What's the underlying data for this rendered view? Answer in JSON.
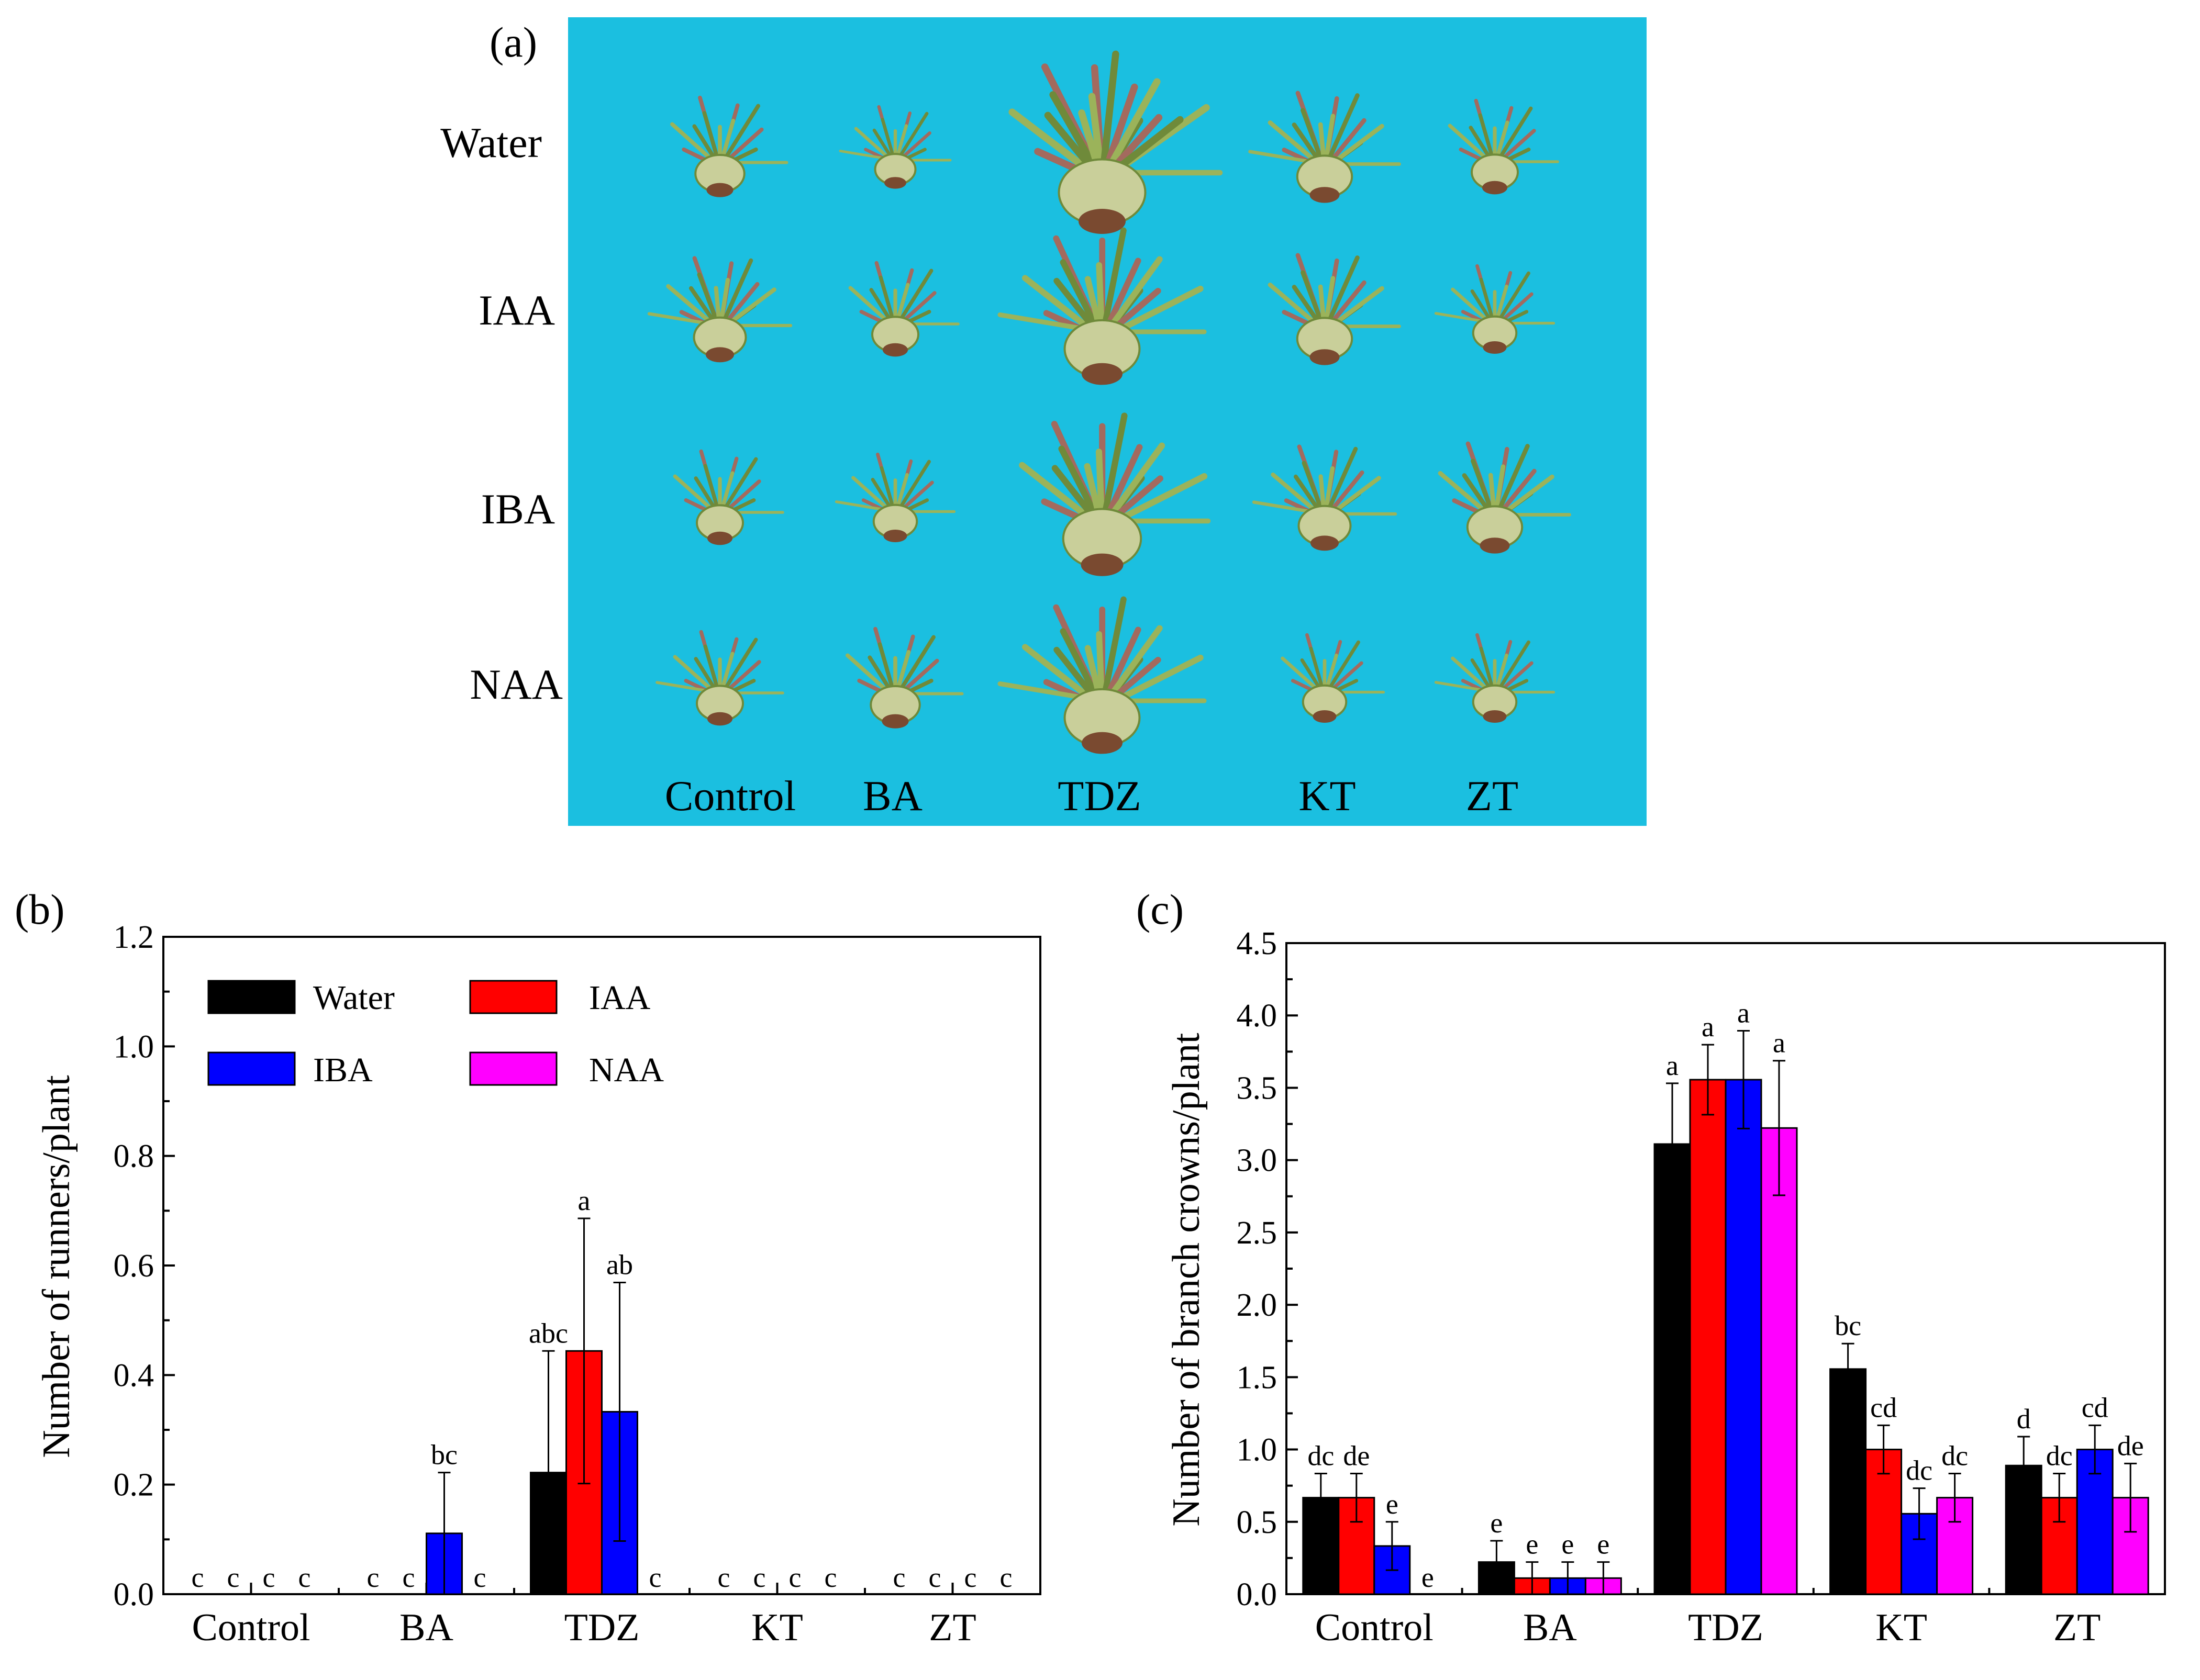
{
  "panel_a": {
    "label": "(a)",
    "row_labels": [
      "Water",
      "IAA",
      "IBA",
      "NAA"
    ],
    "col_labels": [
      "Control",
      "BA",
      "TDZ",
      "KT",
      "ZT"
    ],
    "background_color": "#1bbfe0",
    "specimen_colors": {
      "leaf": "#9bb35a",
      "leaf_dark": "#6f8a3a",
      "stem": "#a36a5e",
      "crown": "#c9cf9a",
      "root": "#7a4a30"
    },
    "specimen_scale": [
      [
        0.85,
        0.7,
        1.5,
        0.95,
        0.8
      ],
      [
        0.9,
        0.8,
        1.3,
        0.95,
        0.75
      ],
      [
        0.8,
        0.75,
        1.35,
        0.9,
        0.95
      ],
      [
        0.8,
        0.85,
        1.3,
        0.75,
        0.75
      ]
    ]
  },
  "legend": {
    "items": [
      {
        "name": "Water",
        "color": "#000000"
      },
      {
        "name": "IAA",
        "color": "#ff0000"
      },
      {
        "name": "IBA",
        "color": "#0000ff"
      },
      {
        "name": "NAA",
        "color": "#ff00ff"
      }
    ]
  },
  "chart_data": [
    {
      "id": "b",
      "panel_label": "(b)",
      "type": "bar",
      "ylabel": "Number of runners/plant",
      "ylim": [
        0,
        1.2
      ],
      "yticks": [
        "0.0",
        "0.2",
        "0.4",
        "0.6",
        "0.8",
        "1.0",
        "1.2"
      ],
      "categories": [
        "Control",
        "BA",
        "TDZ",
        "KT",
        "ZT"
      ],
      "series": [
        {
          "name": "Water",
          "color": "#000000",
          "values": [
            0,
            0,
            0.222,
            0,
            0
          ],
          "errors": [
            0,
            0,
            0.222,
            0,
            0
          ],
          "labels": [
            "c",
            "c",
            "abc",
            "c",
            "c"
          ]
        },
        {
          "name": "IAA",
          "color": "#ff0000",
          "values": [
            0,
            0,
            0.444,
            0,
            0
          ],
          "errors": [
            0,
            0,
            0.242,
            0,
            0
          ],
          "labels": [
            "c",
            "c",
            "a",
            "c",
            "c"
          ]
        },
        {
          "name": "IBA",
          "color": "#0000ff",
          "values": [
            0,
            0.111,
            0.333,
            0,
            0
          ],
          "errors": [
            0,
            0.111,
            0.236,
            0,
            0
          ],
          "labels": [
            "c",
            "bc",
            "ab",
            "c",
            "c"
          ]
        },
        {
          "name": "NAA",
          "color": "#ff00ff",
          "values": [
            0,
            0,
            0,
            0,
            0
          ],
          "errors": [
            0,
            0,
            0,
            0,
            0
          ],
          "labels": [
            "c",
            "c",
            "c",
            "c",
            "c"
          ]
        }
      ]
    },
    {
      "id": "c",
      "panel_label": "(c)",
      "type": "bar",
      "ylabel": "Number of branch crowns/plant",
      "ylim": [
        0,
        4.5
      ],
      "yticks": [
        "0.0",
        "0.5",
        "1.0",
        "1.5",
        "2.0",
        "2.5",
        "3.0",
        "3.5",
        "4.0",
        "4.5"
      ],
      "categories": [
        "Control",
        "BA",
        "TDZ",
        "KT",
        "ZT"
      ],
      "series": [
        {
          "name": "Water",
          "color": "#000000",
          "values": [
            0.667,
            0.222,
            3.111,
            1.556,
            0.889
          ],
          "errors": [
            0.167,
            0.147,
            0.42,
            0.176,
            0.2
          ],
          "labels": [
            "dc",
            "e",
            "a",
            "bc",
            "d"
          ]
        },
        {
          "name": "IAA",
          "color": "#ff0000",
          "values": [
            0.667,
            0.111,
            3.556,
            1.0,
            0.667
          ],
          "errors": [
            0.167,
            0.111,
            0.242,
            0.167,
            0.167
          ],
          "labels": [
            "de",
            "e",
            "a",
            "cd",
            "dc"
          ]
        },
        {
          "name": "IBA",
          "color": "#0000ff",
          "values": [
            0.333,
            0.111,
            3.556,
            0.556,
            1.0
          ],
          "errors": [
            0.167,
            0.111,
            0.338,
            0.176,
            0.167
          ],
          "labels": [
            "e",
            "e",
            "a",
            "dc",
            "cd"
          ]
        },
        {
          "name": "NAA",
          "color": "#ff00ff",
          "values": [
            0,
            0.111,
            3.222,
            0.667,
            0.667
          ],
          "errors": [
            0,
            0.111,
            0.465,
            0.167,
            0.236
          ],
          "labels": [
            "e",
            "e",
            "a",
            "dc",
            "de"
          ]
        }
      ]
    }
  ]
}
